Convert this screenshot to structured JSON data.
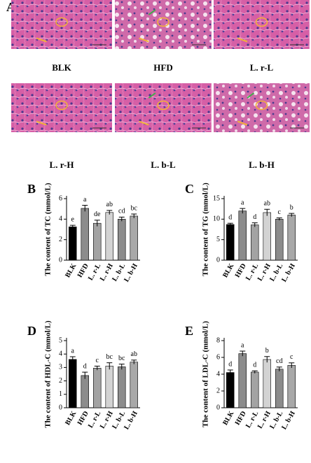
{
  "panel_a": {
    "label": "A",
    "captions": [
      "BLK",
      "HFD",
      "L. r-L",
      "L. r-H",
      "L. b-L",
      "L. b-H"
    ]
  },
  "chart_data": [
    {
      "type": "bar",
      "panel": "B",
      "y_label": "The content of TC (mmol/L)",
      "categories": [
        "BLK",
        "HFD",
        "L. r-L",
        "L. r-H",
        "L. b-L",
        "L. b-H"
      ],
      "values": [
        3.25,
        5.05,
        3.6,
        4.65,
        4.0,
        4.3
      ],
      "errors": [
        0.15,
        0.3,
        0.3,
        0.2,
        0.2,
        0.2
      ],
      "letters": [
        "e",
        "a",
        "de",
        "ab",
        "cd",
        "bc"
      ],
      "colors": [
        "#000000",
        "#8c8c8c",
        "#a3a3a3",
        "#d3d3d3",
        "#8c8c8c",
        "#a8a8a8"
      ],
      "ylim": [
        0,
        6
      ],
      "yticks": [
        0,
        2,
        4,
        6
      ]
    },
    {
      "type": "bar",
      "panel": "C",
      "y_label": "The content of TG (mmol/L)",
      "categories": [
        "BLK",
        "HFD",
        "L. r-L",
        "L. r-H",
        "L. b-L",
        "L. b-H"
      ],
      "values": [
        8.7,
        12.0,
        8.6,
        11.6,
        10.0,
        11.0
      ],
      "errors": [
        0.3,
        0.6,
        0.5,
        0.8,
        0.3,
        0.4
      ],
      "letters": [
        "d",
        "a",
        "d",
        "ab",
        "c",
        "b"
      ],
      "colors": [
        "#000000",
        "#8c8c8c",
        "#a3a3a3",
        "#d3d3d3",
        "#8c8c8c",
        "#a8a8a8"
      ],
      "ylim": [
        0,
        15
      ],
      "yticks": [
        0,
        5,
        10,
        15
      ]
    },
    {
      "type": "bar",
      "panel": "D",
      "y_label": "The content of HDL-C (mmol/L)",
      "categories": [
        "BLK",
        "HFD",
        "L. r-L",
        "L. r-H",
        "L. b-L",
        "L. b-H"
      ],
      "values": [
        3.6,
        2.4,
        2.95,
        3.1,
        3.05,
        3.4
      ],
      "errors": [
        0.2,
        0.25,
        0.15,
        0.25,
        0.2,
        0.15
      ],
      "letters": [
        "a",
        "d",
        "c",
        "bc",
        "bc",
        "ab"
      ],
      "colors": [
        "#000000",
        "#8c8c8c",
        "#a3a3a3",
        "#d3d3d3",
        "#8c8c8c",
        "#a8a8a8"
      ],
      "ylim": [
        0,
        5
      ],
      "yticks": [
        0,
        1,
        2,
        3,
        4,
        5
      ]
    },
    {
      "type": "bar",
      "panel": "E",
      "y_label": "The content of LDL-C (mmol/L)",
      "categories": [
        "BLK",
        "HFD",
        "L. r-L",
        "L. r-H",
        "L. b-L",
        "L. b-H"
      ],
      "values": [
        4.2,
        6.45,
        4.25,
        5.75,
        4.6,
        5.05
      ],
      "errors": [
        0.3,
        0.3,
        0.15,
        0.35,
        0.25,
        0.3
      ],
      "letters": [
        "d",
        "a",
        "d",
        "b",
        "cd",
        "c"
      ],
      "colors": [
        "#000000",
        "#8c8c8c",
        "#a3a3a3",
        "#d3d3d3",
        "#8c8c8c",
        "#a8a8a8"
      ],
      "ylim": [
        0,
        8
      ],
      "yticks": [
        0,
        2,
        4,
        6,
        8
      ]
    }
  ]
}
